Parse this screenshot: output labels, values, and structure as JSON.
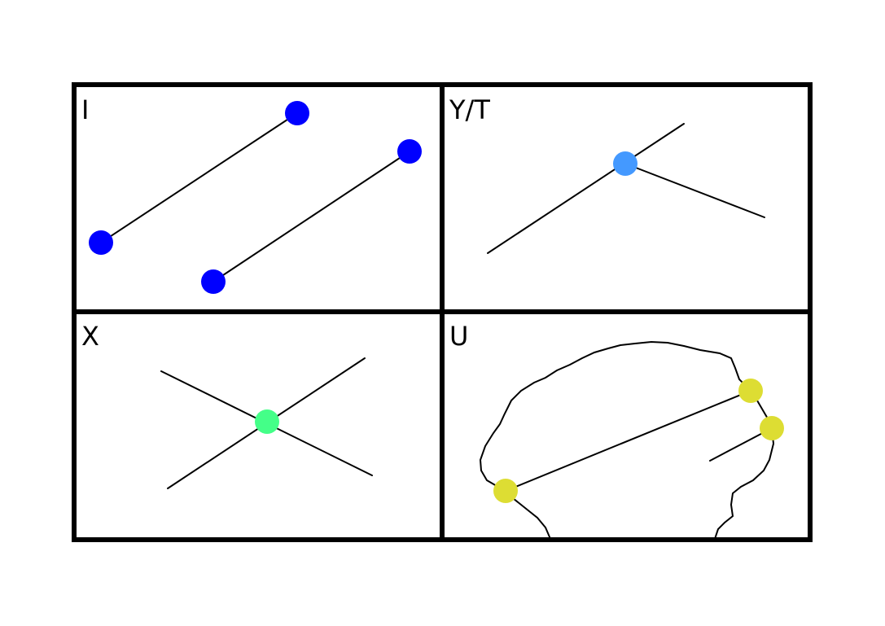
{
  "panels": [
    {
      "id": "i",
      "label": "I"
    },
    {
      "id": "yt",
      "label": "Y/T"
    },
    {
      "id": "x",
      "label": "X"
    },
    {
      "id": "u",
      "label": "U"
    }
  ],
  "colors": {
    "i_points": "#0000ff",
    "yt_point": "#4499ff",
    "x_point": "#44ff88",
    "u_points": "#dddd33",
    "lines": "#000000",
    "frame": "#000000"
  }
}
